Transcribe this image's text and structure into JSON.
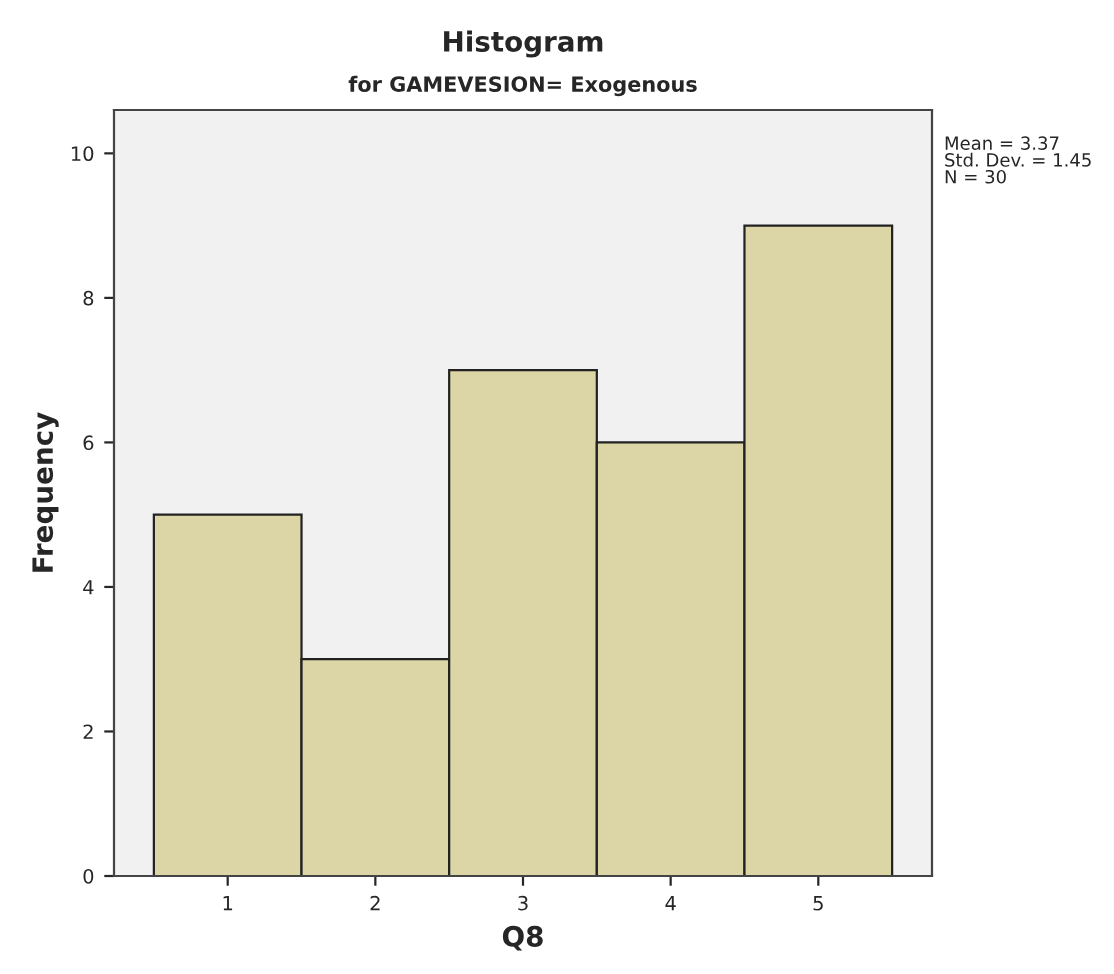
{
  "chart_data": {
    "type": "histogram",
    "title": "Histogram",
    "subtitle": "for GAMEVESION= Exogenous",
    "xlabel": "Q8",
    "ylabel": "Frequency",
    "bins": [
      0.5,
      1.5,
      2.5,
      3.5,
      4.5,
      5.5
    ],
    "values": [
      5,
      3,
      7,
      6,
      9
    ],
    "color": "#dcd5a5",
    "xlim": [
      0.23,
      5.77
    ],
    "xticks": [
      1,
      2,
      3,
      4,
      5
    ],
    "ylim": [
      0,
      10.6
    ],
    "yticks": [
      0,
      2,
      4,
      6,
      8,
      10
    ],
    "grid": false,
    "annotations": [
      "Mean = 3.37\nStd. Dev. = 1.45\nN = 30"
    ]
  }
}
